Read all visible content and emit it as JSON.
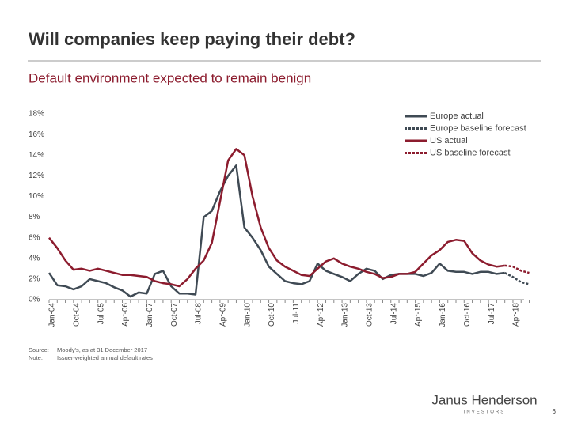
{
  "chart_data": {
    "type": "line",
    "title": "Will companies keep paying their debt?",
    "subtitle": "Default environment expected to remain benign",
    "categories": [
      "Jan-04",
      null,
      null,
      "Oct-04",
      null,
      null,
      "Jul-05",
      null,
      null,
      "Apr-06",
      null,
      null,
      "Jan-07",
      null,
      null,
      "Oct-07",
      null,
      null,
      "Jul-08",
      null,
      null,
      "Apr-09",
      null,
      null,
      "Jan-10",
      null,
      null,
      "Oct-10",
      null,
      null,
      "Jul-11",
      null,
      null,
      "Apr-12",
      null,
      null,
      "Jan-13",
      null,
      null,
      "Oct-13",
      null,
      null,
      "Jul-14",
      null,
      null,
      "Apr-15",
      null,
      null,
      "Jan-16",
      null,
      null,
      "Oct-16",
      null,
      null,
      "Jul-17",
      null,
      null,
      "Apr-18",
      null,
      null
    ],
    "series": [
      {
        "name": "Europe actual",
        "color": "#3f4a54",
        "style": "solid",
        "values": [
          2.6,
          1.4,
          1.3,
          1.0,
          1.3,
          2.0,
          1.8,
          1.6,
          1.2,
          0.9,
          0.3,
          0.7,
          0.6,
          2.5,
          2.8,
          1.3,
          0.6,
          0.6,
          0.5,
          8.0,
          8.6,
          10.5,
          12.0,
          13.0,
          7.0,
          6.0,
          4.8,
          3.2,
          2.5,
          1.8,
          1.6,
          1.5,
          1.8,
          3.5,
          2.8,
          2.5,
          2.2,
          1.8,
          2.5,
          3.0,
          2.8,
          2.0,
          2.4,
          2.5,
          2.5,
          2.5,
          2.3,
          2.6,
          3.5,
          2.8,
          2.7,
          2.7,
          2.5,
          2.7,
          2.7,
          2.5,
          2.6,
          null,
          null,
          null
        ]
      },
      {
        "name": "Europe baseline forecast",
        "color": "#3f4a54",
        "style": "dashed",
        "values": [
          null,
          null,
          null,
          null,
          null,
          null,
          null,
          null,
          null,
          null,
          null,
          null,
          null,
          null,
          null,
          null,
          null,
          null,
          null,
          null,
          null,
          null,
          null,
          null,
          null,
          null,
          null,
          null,
          null,
          null,
          null,
          null,
          null,
          null,
          null,
          null,
          null,
          null,
          null,
          null,
          null,
          null,
          null,
          null,
          null,
          null,
          null,
          null,
          null,
          null,
          null,
          null,
          null,
          null,
          null,
          null,
          2.6,
          2.2,
          1.7,
          1.5
        ]
      },
      {
        "name": "US actual",
        "color": "#8c1c2e",
        "style": "solid",
        "values": [
          6.0,
          5.0,
          3.8,
          2.9,
          3.0,
          2.8,
          3.0,
          2.8,
          2.6,
          2.4,
          2.4,
          2.3,
          2.2,
          1.8,
          1.6,
          1.5,
          1.3,
          2.0,
          3.0,
          3.8,
          5.5,
          9.5,
          13.5,
          14.6,
          14.0,
          10.0,
          7.0,
          5.0,
          3.8,
          3.2,
          2.8,
          2.4,
          2.3,
          3.0,
          3.7,
          4.0,
          3.5,
          3.2,
          3.0,
          2.7,
          2.5,
          2.1,
          2.2,
          2.5,
          2.5,
          2.7,
          3.5,
          4.3,
          4.8,
          5.6,
          5.8,
          5.7,
          4.5,
          3.8,
          3.4,
          3.2,
          3.3,
          null,
          null,
          null
        ]
      },
      {
        "name": "US baseline forecast",
        "color": "#8c1c2e",
        "style": "dashed",
        "values": [
          null,
          null,
          null,
          null,
          null,
          null,
          null,
          null,
          null,
          null,
          null,
          null,
          null,
          null,
          null,
          null,
          null,
          null,
          null,
          null,
          null,
          null,
          null,
          null,
          null,
          null,
          null,
          null,
          null,
          null,
          null,
          null,
          null,
          null,
          null,
          null,
          null,
          null,
          null,
          null,
          null,
          null,
          null,
          null,
          null,
          null,
          null,
          null,
          null,
          null,
          null,
          null,
          null,
          null,
          null,
          null,
          3.3,
          3.2,
          2.8,
          2.6
        ]
      }
    ],
    "ylim": [
      0,
      18
    ],
    "yticks": [
      {
        "value": 0,
        "label": "0%"
      },
      {
        "value": 2,
        "label": "2%"
      },
      {
        "value": 4,
        "label": "4%"
      },
      {
        "value": 6,
        "label": "6%"
      },
      {
        "value": 8,
        "label": "8%"
      },
      {
        "value": 10,
        "label": "10%"
      },
      {
        "value": 12,
        "label": "12%"
      },
      {
        "value": 14,
        "label": "14%"
      },
      {
        "value": 16,
        "label": "16%"
      },
      {
        "value": 18,
        "label": "18%"
      }
    ],
    "grid": false,
    "legend": "top-right"
  },
  "notes": [
    {
      "label": "Source:",
      "text": "Moody's, as at 31 December 2017"
    },
    {
      "label": "Note:",
      "text": "Issuer-weighted annual default rates"
    }
  ],
  "brand": "Janus Henderson",
  "brand_sub": "INVESTORS",
  "page_number": "6"
}
